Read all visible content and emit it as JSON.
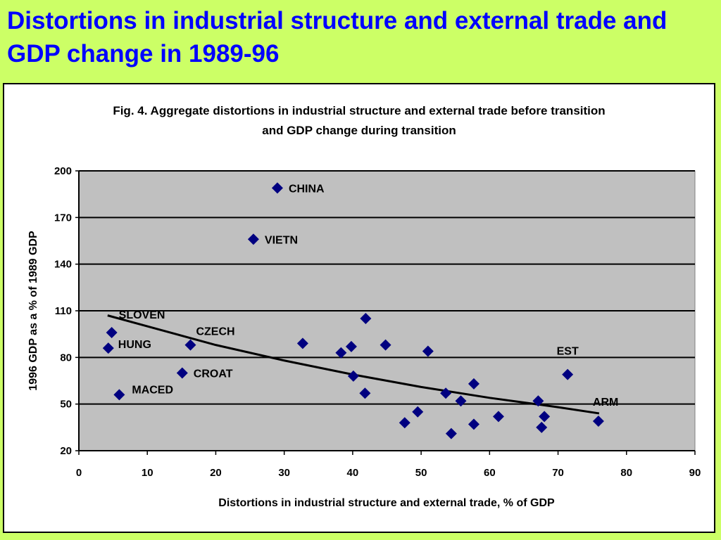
{
  "slide": {
    "title": "Distortions in industrial structure and external trade and GDP change in 1989-96"
  },
  "chart_data": {
    "type": "scatter",
    "title_line1": "Fig. 4. Aggregate distortions in industrial structure and external trade before transition",
    "title_line2": "and GDP change during transition",
    "xlabel": "Distortions in industrial structure and external trade, % of GDP",
    "ylabel": "1996 GDP as a % of 1989 GDP",
    "xlim": [
      0,
      90
    ],
    "ylim": [
      20,
      200
    ],
    "x_ticks": [
      0,
      10,
      20,
      30,
      40,
      50,
      60,
      70,
      80,
      90
    ],
    "y_ticks": [
      20,
      50,
      80,
      110,
      140,
      170,
      200
    ],
    "grid": "horizontal",
    "plot_background": "#c0c0c0",
    "page_background": "#ccff66",
    "title_color": "#0000ff",
    "marker_color": "#000080",
    "trendline_color": "#000000",
    "points": [
      {
        "x": 29.0,
        "y": 189,
        "label": "CHINA"
      },
      {
        "x": 25.5,
        "y": 156,
        "label": "VIETN"
      },
      {
        "x": 4.8,
        "y": 96,
        "label": "SLOVEN"
      },
      {
        "x": 4.3,
        "y": 86,
        "label": "HUNG"
      },
      {
        "x": 16.3,
        "y": 88,
        "label": "CZECH"
      },
      {
        "x": 15.1,
        "y": 70,
        "label": "CROAT"
      },
      {
        "x": 5.9,
        "y": 56,
        "label": "MACED"
      },
      {
        "x": 71.4,
        "y": 69,
        "label": "EST"
      },
      {
        "x": 75.9,
        "y": 39,
        "label": "ARM"
      },
      {
        "x": 32.7,
        "y": 89
      },
      {
        "x": 38.3,
        "y": 83
      },
      {
        "x": 39.8,
        "y": 87
      },
      {
        "x": 41.9,
        "y": 105
      },
      {
        "x": 44.8,
        "y": 88
      },
      {
        "x": 51.0,
        "y": 84
      },
      {
        "x": 40.1,
        "y": 68
      },
      {
        "x": 41.8,
        "y": 57
      },
      {
        "x": 47.6,
        "y": 38
      },
      {
        "x": 49.5,
        "y": 45
      },
      {
        "x": 54.4,
        "y": 31
      },
      {
        "x": 53.6,
        "y": 57
      },
      {
        "x": 55.8,
        "y": 52
      },
      {
        "x": 57.7,
        "y": 63
      },
      {
        "x": 57.7,
        "y": 37
      },
      {
        "x": 61.3,
        "y": 42
      },
      {
        "x": 67.1,
        "y": 52
      },
      {
        "x": 67.6,
        "y": 35
      },
      {
        "x": 68.0,
        "y": 42
      }
    ],
    "trendline": {
      "type": "curve",
      "points": [
        {
          "x": 4.2,
          "y": 107
        },
        {
          "x": 10,
          "y": 100
        },
        {
          "x": 20,
          "y": 88
        },
        {
          "x": 30,
          "y": 78
        },
        {
          "x": 40,
          "y": 69
        },
        {
          "x": 50,
          "y": 61
        },
        {
          "x": 60,
          "y": 54
        },
        {
          "x": 70,
          "y": 48
        },
        {
          "x": 76,
          "y": 44
        }
      ]
    }
  }
}
